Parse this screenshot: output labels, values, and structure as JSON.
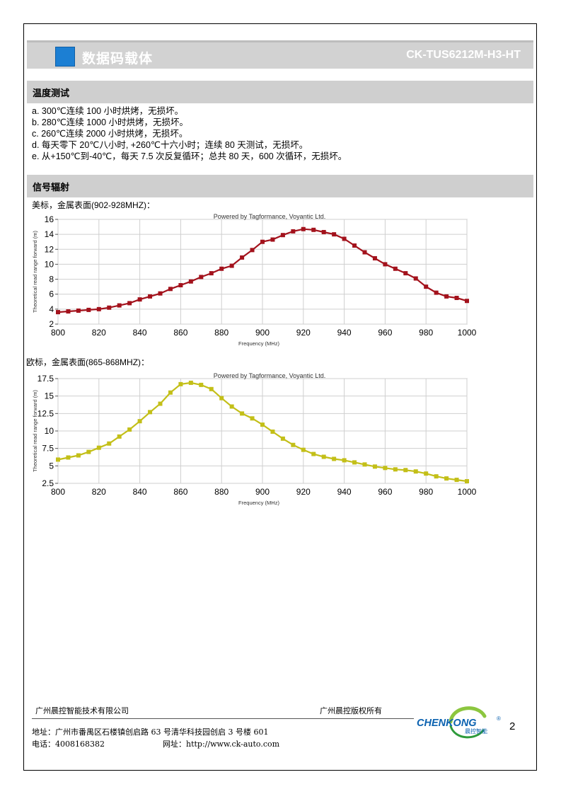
{
  "header": {
    "title": "数据码载体",
    "product_code": "CK-TUS6212M-H3-HT",
    "accent_color": "#1c7fd3"
  },
  "sections": {
    "temperature": {
      "title": "温度测试",
      "items": [
        "a. 300℃连续 100 小时烘烤，无损坏。",
        "b. 280℃连续 1000 小时烘烤，无损坏。",
        "c. 260℃连续 2000 小时烘烤，无损坏。",
        "d.  每天零下 20℃八小时, +260℃十六小时；连续 80 天测试，无损坏。",
        "e.  从+150℃到-40℃，每天 7.5 次反复循环；总共 80 天，600 次循环，无损坏。"
      ]
    },
    "signal": {
      "title": "信号辐射",
      "us_caption": "美标，金属表面(902-928MHZ)：",
      "eu_caption": "欧标，金属表面(865-868MHZ)："
    }
  },
  "chart_data": [
    {
      "type": "line",
      "title": "Powered by Tagformance, Voyantic Ltd.",
      "xlabel": "Frequency (MHz)",
      "ylabel": "Theoretical read range forward (m)",
      "xlim": [
        800,
        1000
      ],
      "ylim": [
        2,
        16
      ],
      "xticks": [
        800,
        820,
        840,
        860,
        880,
        900,
        920,
        940,
        960,
        980,
        1000
      ],
      "yticks": [
        2,
        4,
        6,
        8,
        10,
        12,
        14,
        16
      ],
      "grid": true,
      "color": "#a3121c",
      "series": [
        {
          "x": [
            800,
            805,
            810,
            815,
            820,
            825,
            830,
            835,
            840,
            845,
            850,
            855,
            860,
            865,
            870,
            875,
            880,
            885,
            890,
            895,
            900,
            905,
            910,
            915,
            920,
            925,
            930,
            935,
            940,
            945,
            950,
            955,
            960,
            965,
            970,
            975,
            980,
            985,
            990,
            995,
            1000
          ],
          "y": [
            3.6,
            3.7,
            3.8,
            3.9,
            4.0,
            4.2,
            4.5,
            4.8,
            5.3,
            5.7,
            6.1,
            6.7,
            7.2,
            7.7,
            8.3,
            8.8,
            9.4,
            9.8,
            10.9,
            11.9,
            13.0,
            13.3,
            13.9,
            14.4,
            14.7,
            14.6,
            14.3,
            14.0,
            13.4,
            12.5,
            11.6,
            10.8,
            10.0,
            9.4,
            8.8,
            8.1,
            7.0,
            6.2,
            5.7,
            5.5,
            5.1
          ]
        }
      ]
    },
    {
      "type": "line",
      "title": "Powered by Tagformance, Voyantic Ltd.",
      "xlabel": "Frequency (MHz)",
      "ylabel": "Theoretical read range forward (m)",
      "xlim": [
        800,
        1000
      ],
      "ylim": [
        2.5,
        17.5
      ],
      "xticks": [
        800,
        820,
        840,
        860,
        880,
        900,
        920,
        940,
        960,
        980,
        1000
      ],
      "yticks": [
        2.5,
        5,
        7.5,
        10,
        12.5,
        15,
        17.5
      ],
      "grid": true,
      "color": "#c3bf18",
      "series": [
        {
          "x": [
            800,
            805,
            810,
            815,
            820,
            825,
            830,
            835,
            840,
            845,
            850,
            855,
            860,
            865,
            870,
            875,
            880,
            885,
            890,
            895,
            900,
            905,
            910,
            915,
            920,
            925,
            930,
            935,
            940,
            945,
            950,
            955,
            960,
            965,
            970,
            975,
            980,
            985,
            990,
            995,
            1000
          ],
          "y": [
            5.9,
            6.2,
            6.5,
            7.0,
            7.6,
            8.2,
            9.2,
            10.2,
            11.4,
            12.7,
            13.9,
            15.5,
            16.7,
            16.9,
            16.6,
            16.0,
            14.7,
            13.5,
            12.5,
            11.8,
            10.9,
            9.9,
            8.9,
            8.0,
            7.3,
            6.7,
            6.3,
            6.0,
            5.8,
            5.5,
            5.2,
            4.9,
            4.7,
            4.5,
            4.4,
            4.2,
            3.9,
            3.5,
            3.2,
            3.0,
            2.8
          ]
        }
      ]
    }
  ],
  "footer": {
    "company": "广州晨控智能技术有限公司",
    "rights": "广州晨控版权所有",
    "address": "地址：广州市番禺区石楼镇创启路 63 号清华科技园创启 3 号楼 601",
    "phone": "电话：4008168382",
    "website": "网址：http://www.ck-auto.com",
    "logo_text": "CHENKONG",
    "logo_subtext": "晨控智能",
    "logo_mark": "®",
    "page_number": "2"
  }
}
